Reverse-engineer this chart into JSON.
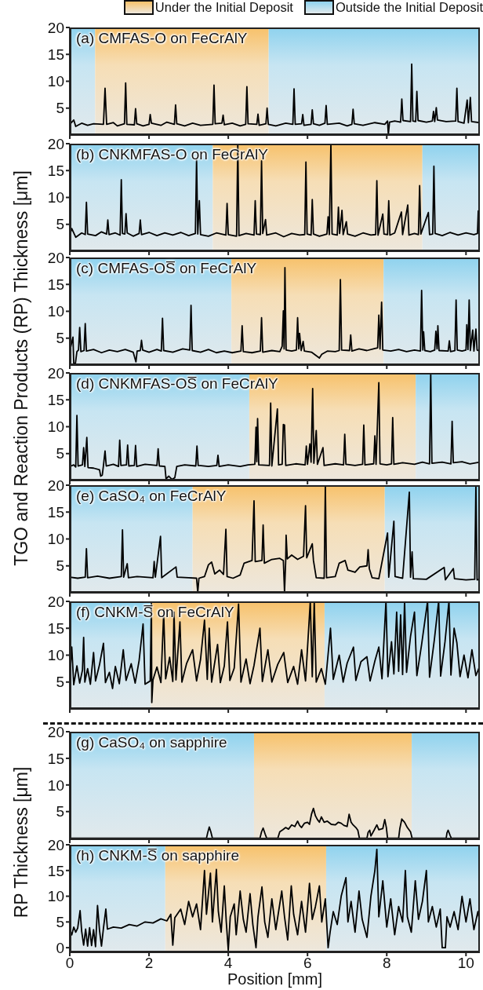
{
  "chart_data": [
    {
      "type": "line",
      "title": "(a) CMFAS-O on FeCrAlY",
      "ylabel": "TGO and Reaction Products (RP) Thickness [μm]",
      "legend": "top",
      "xlim": [
        0,
        10.35
      ],
      "xticks": [
        0,
        2,
        4,
        6,
        8,
        10
      ],
      "ylim": [
        0,
        20
      ],
      "yticks": [
        5,
        10,
        15,
        20
      ],
      "tick_labels": "y",
      "bands": [
        {
          "axis": "x",
          "from": 0,
          "to": 0.64,
          "color": "#8ed2ee"
        },
        {
          "axis": "x",
          "from": 0.64,
          "to": 5.02,
          "label": "Under the Initial Deposit",
          "color": "#f7c16a"
        },
        {
          "axis": "x",
          "from": 5.02,
          "to": 10.35,
          "label": "Outside the Initial Deposit",
          "color": "#8ed2ee"
        }
      ],
      "series": [
        {
          "color": "#000000",
          "x": [
            0,
            0.1,
            0.15,
            0.3,
            0.45,
            0.6,
            0.85,
            0.89,
            0.93,
            1.1,
            1.2,
            1.38,
            1.41,
            1.44,
            1.63,
            1.66,
            1.69,
            1.85,
            2.0,
            2.03,
            2.06,
            2.3,
            2.45,
            2.64,
            2.67,
            2.7,
            2.9,
            3.1,
            3.3,
            3.61,
            3.64,
            3.67,
            3.84,
            3.87,
            3.9,
            4.1,
            4.3,
            4.44,
            4.47,
            4.5,
            4.72,
            4.75,
            4.78,
            4.95,
            4.98,
            5.01,
            5.2,
            5.45,
            5.63,
            5.66,
            5.69,
            5.85,
            5.88,
            5.91,
            6.09,
            6.12,
            6.15,
            6.3,
            6.44,
            6.47,
            6.5,
            6.8,
            7.0,
            7.12,
            7.15,
            7.18,
            7.4,
            7.7,
            7.95,
            8.02,
            8.04,
            8.07,
            8.2,
            8.35,
            8.38,
            8.41,
            8.6,
            8.63,
            8.66,
            8.73,
            8.76,
            8.79,
            9.0,
            9.15,
            9.18,
            9.21,
            9.25,
            9.28,
            9.5,
            9.74,
            9.77,
            9.8,
            9.95,
            10.03,
            10.06,
            10.11,
            10.14,
            10.35
          ],
          "values": [
            2.0,
            2.8,
            1.6,
            2.2,
            1.8,
            2.1,
            2.0,
            8.7,
            2.0,
            2.3,
            1.7,
            2.1,
            9.7,
            2.0,
            1.9,
            4.9,
            2.1,
            1.7,
            2.0,
            3.8,
            2.2,
            1.8,
            2.4,
            2.0,
            5.6,
            2.1,
            1.7,
            2.2,
            1.8,
            2.0,
            9.3,
            2.1,
            2.2,
            3.7,
            1.9,
            2.2,
            1.7,
            2.0,
            9.0,
            2.1,
            2.0,
            3.9,
            1.8,
            2.1,
            5.0,
            2.0,
            1.7,
            2.2,
            2.0,
            8.6,
            2.0,
            2.1,
            3.8,
            1.8,
            2.0,
            4.7,
            2.1,
            1.8,
            2.2,
            5.5,
            2.0,
            2.2,
            1.7,
            2.0,
            4.8,
            2.1,
            1.8,
            2.3,
            2.0,
            2.6,
            0.1,
            2.4,
            2.6,
            2.4,
            6.7,
            2.7,
            2.5,
            13.2,
            2.6,
            2.5,
            8.1,
            2.7,
            2.4,
            2.6,
            4.4,
            2.5,
            5.1,
            2.8,
            2.5,
            2.6,
            8.7,
            2.5,
            2.2,
            6.5,
            2.3,
            7.0,
            2.5,
            2.3
          ]
        }
      ]
    },
    {
      "type": "line",
      "title": "(b) CNKMFAS-O on FeCrAlY",
      "xlim": [
        0,
        10.35
      ],
      "xticks": [
        0,
        2,
        4,
        6,
        8,
        10
      ],
      "ylim": [
        0,
        20
      ],
      "yticks": [
        5,
        10,
        15,
        20
      ],
      "tick_labels": "y",
      "bands": [
        {
          "axis": "x",
          "from": 0,
          "to": 3.61,
          "color": "#8ed2ee"
        },
        {
          "axis": "x",
          "from": 3.61,
          "to": 8.9,
          "color": "#f7c16a"
        },
        {
          "axis": "x",
          "from": 8.9,
          "to": 10.35,
          "color": "#8ed2ee"
        }
      ],
      "series": [
        {
          "color": "#000000",
          "x": [
            0,
            0.05,
            0.15,
            0.3,
            0.39,
            0.42,
            0.45,
            0.65,
            0.8,
            0.93,
            0.96,
            0.99,
            1.15,
            1.27,
            1.3,
            1.33,
            1.39,
            1.42,
            1.45,
            1.6,
            1.75,
            1.78,
            1.81,
            2.0,
            2.2,
            2.4,
            2.6,
            2.8,
            3.0,
            3.17,
            3.2,
            3.23,
            3.27,
            3.3,
            3.5,
            3.7,
            3.94,
            3.97,
            4.0,
            4.21,
            4.24,
            4.27,
            4.45,
            4.65,
            4.68,
            4.71,
            4.81,
            4.84,
            4.87,
            4.94,
            4.97,
            5.2,
            5.4,
            5.6,
            5.8,
            5.93,
            5.96,
            5.99,
            6.09,
            6.12,
            6.15,
            6.3,
            6.49,
            6.52,
            6.55,
            6.59,
            6.62,
            6.75,
            6.78,
            6.81,
            6.87,
            6.9,
            6.98,
            7.01,
            7.2,
            7.4,
            7.6,
            7.72,
            7.75,
            7.78,
            7.9,
            7.93,
            8.02,
            8.05,
            8.08,
            8.2,
            8.37,
            8.4,
            8.53,
            8.56,
            8.7,
            8.8,
            8.83,
            8.86,
            9.05,
            9.08,
            9.16,
            9.19,
            9.22,
            9.4,
            9.6,
            9.8,
            10.0,
            10.2,
            10.29,
            10.31,
            10.35
          ],
          "values": [
            3.0,
            4.2,
            2.6,
            3.4,
            3.1,
            9.1,
            3.2,
            2.9,
            3.6,
            3.2,
            5.8,
            3.1,
            3.4,
            3.0,
            13.3,
            3.3,
            3.2,
            7.0,
            3.4,
            2.8,
            3.3,
            5.8,
            3.1,
            3.5,
            2.9,
            3.4,
            3.0,
            3.5,
            2.9,
            3.3,
            17.1,
            3.2,
            9.4,
            3.1,
            2.8,
            3.4,
            3.0,
            8.9,
            3.1,
            2.8,
            20,
            2.9,
            3.3,
            3.0,
            9.4,
            3.2,
            3.1,
            16.8,
            3.3,
            5.9,
            3.0,
            3.4,
            2.7,
            3.3,
            3.0,
            3.1,
            16.6,
            3.2,
            3.0,
            9.6,
            3.2,
            2.8,
            3.2,
            6.4,
            3.1,
            20,
            3.2,
            3.0,
            8.2,
            3.3,
            7.6,
            3.1,
            5.5,
            3.2,
            2.8,
            3.4,
            3.0,
            3.1,
            13.1,
            3.0,
            6.9,
            3.2,
            3.1,
            9.4,
            3.0,
            3.4,
            7.3,
            3.1,
            8.6,
            3.0,
            3.3,
            3.1,
            12.2,
            3.2,
            7.2,
            3.1,
            3.2,
            15.8,
            3.3,
            2.9,
            3.5,
            3.0,
            3.4,
            3.1,
            3.3,
            7.5,
            3.3
          ]
        }
      ]
    },
    {
      "type": "line",
      "title": "(c) CMFAS-OS̅ on FeCrAlY",
      "xlim": [
        0,
        10.35
      ],
      "xticks": [
        0,
        2,
        4,
        6,
        8,
        10
      ],
      "ylim": [
        0,
        20
      ],
      "yticks": [
        5,
        10,
        15,
        20
      ],
      "tick_labels": "y",
      "bands": [
        {
          "axis": "x",
          "from": 0,
          "to": 4.08,
          "color": "#8ed2ee"
        },
        {
          "axis": "x",
          "from": 4.08,
          "to": 7.92,
          "color": "#f7c16a"
        },
        {
          "axis": "x",
          "from": 7.92,
          "to": 10.35,
          "color": "#8ed2ee"
        }
      ],
      "series": [
        {
          "color": "#000000",
          "x": [
            0,
            0.08,
            0.1,
            0.14,
            0.18,
            0.22,
            0.25,
            0.28,
            0.36,
            0.39,
            0.42,
            0.6,
            0.8,
            1.0,
            1.2,
            1.4,
            1.6,
            1.67,
            1.7,
            1.78,
            1.81,
            1.84,
            2.0,
            2.2,
            2.31,
            2.34,
            2.37,
            2.6,
            2.85,
            3.03,
            3.06,
            3.09,
            3.3,
            3.5,
            3.7,
            3.9,
            4.1,
            4.32,
            4.35,
            4.38,
            4.6,
            4.81,
            4.84,
            4.87,
            5.1,
            5.3,
            5.36,
            5.39,
            5.41,
            5.43,
            5.46,
            5.6,
            5.72,
            5.75,
            5.78,
            5.8,
            5.84,
            5.89,
            5.92,
            6.1,
            6.3,
            6.36,
            6.5,
            6.7,
            6.8,
            6.83,
            6.86,
            7.06,
            7.09,
            7.12,
            7.3,
            7.5,
            7.7,
            7.77,
            7.8,
            7.83,
            7.87,
            7.9,
            8.1,
            8.3,
            8.5,
            8.7,
            8.85,
            8.88,
            8.91,
            8.93,
            8.96,
            9.1,
            9.21,
            9.24,
            9.27,
            9.29,
            9.32,
            9.55,
            9.58,
            9.61,
            9.72,
            9.75,
            9.78,
            9.9,
            10.0,
            10.02,
            10.05,
            10.08,
            10.11,
            10.17,
            10.2,
            10.25,
            10.28,
            10.35
          ],
          "values": [
            2.6,
            5.2,
            0.3,
            0.2,
            2.5,
            2.8,
            7.0,
            2.5,
            2.7,
            7.7,
            2.6,
            2.9,
            2.3,
            2.8,
            2.5,
            2.9,
            2.4,
            0.6,
            2.6,
            2.7,
            4.6,
            2.8,
            2.4,
            2.9,
            2.6,
            8.7,
            2.7,
            2.4,
            3.0,
            2.8,
            11.1,
            2.7,
            2.4,
            2.9,
            2.3,
            2.6,
            2.3,
            2.6,
            7.3,
            2.5,
            2.3,
            2.6,
            8.8,
            2.4,
            2.7,
            2.5,
            3.5,
            10.1,
            3.0,
            18.1,
            2.8,
            2.6,
            2.8,
            8.8,
            3.0,
            5.9,
            2.7,
            4.4,
            2.6,
            2.4,
            1.3,
            2.0,
            2.6,
            2.5,
            2.7,
            15.9,
            2.8,
            2.7,
            5.6,
            2.6,
            3.0,
            2.7,
            3.1,
            3.2,
            9.3,
            3.0,
            11.7,
            2.8,
            2.6,
            2.9,
            2.5,
            2.8,
            2.6,
            13.9,
            2.8,
            6.2,
            2.7,
            2.5,
            2.8,
            6.3,
            3.0,
            7.3,
            2.7,
            2.6,
            4.5,
            2.5,
            2.7,
            12.1,
            2.8,
            2.6,
            2.8,
            7.5,
            2.9,
            12.1,
            2.7,
            6.5,
            2.6,
            6.7,
            2.8,
            2.6
          ]
        }
      ]
    },
    {
      "type": "line",
      "title": "(d) CNKMFAS-OS̅ on FeCrAlY",
      "xlim": [
        0,
        10.35
      ],
      "xticks": [
        0,
        2,
        4,
        6,
        8,
        10
      ],
      "ylim": [
        0,
        20
      ],
      "yticks": [
        5,
        10,
        15,
        20
      ],
      "tick_labels": "y",
      "bands": [
        {
          "axis": "x",
          "from": 0,
          "to": 4.53,
          "color": "#8ed2ee"
        },
        {
          "axis": "x",
          "from": 4.53,
          "to": 8.73,
          "color": "#f7c16a"
        },
        {
          "axis": "x",
          "from": 8.73,
          "to": 10.35,
          "color": "#8ed2ee"
        }
      ],
      "series": [
        {
          "color": "#000000",
          "x": [
            0,
            0.1,
            0.15,
            0.18,
            0.21,
            0.32,
            0.35,
            0.38,
            0.43,
            0.46,
            0.6,
            0.75,
            0.78,
            0.82,
            0.85,
            0.89,
            0.92,
            1.1,
            1.23,
            1.26,
            1.29,
            1.43,
            1.46,
            1.49,
            1.63,
            1.66,
            1.69,
            1.9,
            2.2,
            2.23,
            2.26,
            2.4,
            2.43,
            2.5,
            2.58,
            2.65,
            2.7,
            2.9,
            3.18,
            3.21,
            3.24,
            3.5,
            3.71,
            3.74,
            3.77,
            4.0,
            4.3,
            4.5,
            4.67,
            4.7,
            4.72,
            4.74,
            4.77,
            5.04,
            5.07,
            5.1,
            5.24,
            5.27,
            5.36,
            5.39,
            5.42,
            5.45,
            5.7,
            5.94,
            5.97,
            6.0,
            6.06,
            6.09,
            6.13,
            6.16,
            6.22,
            6.25,
            6.39,
            6.42,
            6.7,
            6.91,
            6.94,
            6.97,
            7.2,
            7.39,
            7.42,
            7.45,
            7.67,
            7.7,
            7.73,
            7.8,
            7.83,
            8.0,
            8.12,
            8.15,
            8.18,
            8.4,
            8.7,
            8.9,
            9.08,
            9.11,
            9.14,
            9.4,
            9.62,
            9.65,
            9.68,
            9.9,
            10.1,
            10.35
          ],
          "values": [
            2.6,
            2.9,
            2.5,
            12.1,
            2.7,
            2.9,
            6.1,
            2.6,
            8.0,
            2.4,
            2.3,
            2.0,
            0.8,
            1.0,
            2.8,
            5.5,
            2.7,
            3.0,
            2.6,
            7.5,
            2.8,
            2.9,
            6.6,
            2.7,
            2.8,
            6.5,
            2.6,
            3.0,
            2.8,
            5.9,
            2.7,
            2.6,
            0.3,
            0.8,
            0.2,
            0.5,
            2.6,
            2.9,
            2.7,
            6.4,
            2.8,
            2.6,
            2.8,
            4.7,
            2.6,
            2.9,
            2.6,
            2.9,
            3.0,
            9.9,
            3.5,
            11.5,
            2.9,
            2.8,
            14.4,
            2.7,
            13.3,
            2.9,
            3.0,
            10.4,
            10.3,
            2.8,
            3.1,
            2.9,
            6.4,
            3.0,
            6.8,
            3.4,
            17.1,
            3.2,
            9.3,
            3.0,
            6.1,
            2.8,
            3.1,
            2.9,
            8.6,
            3.0,
            2.8,
            3.0,
            10.3,
            2.9,
            3.1,
            8.3,
            3.0,
            18.2,
            3.1,
            2.9,
            3.1,
            11.7,
            3.0,
            3.3,
            3.0,
            3.4,
            3.1,
            20,
            3.2,
            3.4,
            3.1,
            11.0,
            3.3,
            3.5,
            3.1,
            3.4
          ]
        }
      ]
    },
    {
      "type": "line",
      "title": "(e) CaSO₄ on FeCrAlY",
      "xlim": [
        0,
        10.35
      ],
      "xticks": [
        0,
        2,
        4,
        6,
        8,
        10
      ],
      "ylim": [
        0,
        20
      ],
      "yticks": [
        5,
        10,
        15,
        20
      ],
      "tick_labels": "y",
      "bands": [
        {
          "axis": "x",
          "from": 0,
          "to": 3.1,
          "color": "#8ed2ee"
        },
        {
          "axis": "x",
          "from": 3.1,
          "to": 7.95,
          "color": "#f7c16a"
        },
        {
          "axis": "x",
          "from": 7.95,
          "to": 10.35,
          "color": "#8ed2ee"
        }
      ],
      "series": [
        {
          "color": "#000000",
          "x": [
            0,
            0.2,
            0.39,
            0.42,
            0.45,
            0.7,
            1.0,
            1.3,
            1.33,
            1.36,
            1.45,
            1.48,
            1.7,
            2.1,
            2.13,
            2.16,
            2.29,
            2.32,
            2.68,
            2.71,
            3.0,
            3.2,
            3.23,
            3.26,
            3.4,
            3.5,
            3.58,
            3.66,
            3.78,
            3.88,
            3.94,
            3.97,
            4.12,
            4.3,
            4.4,
            4.6,
            4.65,
            4.68,
            4.85,
            4.88,
            4.91,
            5.1,
            5.3,
            5.39,
            5.42,
            5.45,
            5.46,
            5.49,
            5.6,
            5.75,
            5.9,
            5.95,
            5.98,
            6.12,
            6.15,
            6.22,
            6.42,
            6.45,
            6.48,
            6.7,
            6.8,
            6.95,
            7.02,
            7.2,
            7.32,
            7.5,
            7.53,
            7.56,
            7.63,
            7.8,
            8.02,
            8.05,
            8.18,
            8.21,
            8.4,
            8.57,
            8.6,
            8.64,
            8.67,
            9.0,
            9.45,
            9.48,
            9.68,
            9.71,
            10.0,
            10.22,
            10.25,
            10.28,
            10.35
          ],
          "values": [
            2.9,
            2.7,
            2.9,
            8.2,
            2.8,
            3.1,
            2.7,
            3.0,
            11.7,
            2.9,
            5.4,
            2.8,
            3.0,
            2.8,
            5.8,
            2.9,
            10.5,
            2.8,
            4.8,
            2.9,
            2.8,
            2.7,
            0.1,
            2.7,
            3.0,
            5.2,
            5.7,
            3.5,
            4.2,
            3.4,
            11.8,
            3.0,
            2.7,
            3.3,
            5.5,
            6.0,
            17.1,
            5.8,
            6.0,
            12.6,
            5.5,
            6.2,
            6.4,
            6.0,
            0.1,
            6.1,
            10.7,
            6.3,
            7.0,
            6.2,
            6.8,
            16.2,
            6.5,
            9.1,
            6.0,
            2.8,
            2.7,
            20,
            2.8,
            3.0,
            5.5,
            6.0,
            4.2,
            3.8,
            4.8,
            5.0,
            8.0,
            4.5,
            2.8,
            2.6,
            11.1,
            2.9,
            13.3,
            3.0,
            2.7,
            18.7,
            2.9,
            7.6,
            2.6,
            2.5,
            4.7,
            2.4,
            4.5,
            2.6,
            2.4,
            2.5,
            20,
            2.4,
            2.5
          ]
        }
      ]
    },
    {
      "type": "line",
      "title": "(f) CNKM-S̅ on FeCrAlY",
      "xlim": [
        0,
        10.35
      ],
      "xticks": [
        0,
        2,
        4,
        6,
        8,
        10
      ],
      "ylim": [
        0,
        20
      ],
      "yticks": [
        5,
        10,
        15,
        20
      ],
      "tick_labels": "y",
      "bands": [
        {
          "axis": "x",
          "from": 0,
          "to": 2.04,
          "color": "#8ed2ee"
        },
        {
          "axis": "x",
          "from": 2.04,
          "to": 6.43,
          "color": "#f7c16a"
        },
        {
          "axis": "x",
          "from": 6.43,
          "to": 10.35,
          "color": "#8ed2ee"
        }
      ],
      "series": [
        {
          "color": "#000000",
          "x": [
            0,
            0.05,
            0.1,
            0.18,
            0.25,
            0.32,
            0.35,
            0.38,
            0.45,
            0.52,
            0.6,
            0.65,
            0.75,
            0.85,
            0.9,
            1.0,
            1.08,
            1.15,
            1.25,
            1.35,
            1.42,
            1.55,
            1.65,
            1.75,
            1.85,
            1.9,
            2.03,
            2.06,
            2.07,
            2.1,
            2.2,
            2.3,
            2.37,
            2.42,
            2.52,
            2.6,
            2.63,
            2.68,
            2.78,
            2.83,
            2.95,
            3.1,
            3.2,
            3.3,
            3.4,
            3.47,
            3.52,
            3.58,
            3.73,
            3.8,
            3.9,
            3.98,
            4.04,
            4.15,
            4.26,
            4.32,
            4.45,
            4.55,
            4.65,
            4.8,
            4.86,
            5.0,
            5.1,
            5.25,
            5.4,
            5.5,
            5.65,
            5.75,
            5.85,
            5.95,
            6.07,
            6.12,
            6.17,
            6.22,
            6.35,
            6.45,
            6.58,
            6.65,
            6.8,
            6.9,
            7.0,
            7.16,
            7.22,
            7.35,
            7.5,
            7.58,
            7.7,
            7.8,
            7.88,
            7.98,
            8.03,
            8.12,
            8.18,
            8.25,
            8.3,
            8.35,
            8.4,
            8.45,
            8.5,
            8.6,
            8.7,
            8.76,
            8.88,
            9.03,
            9.08,
            9.2,
            9.31,
            9.36,
            9.47,
            9.57,
            9.62,
            9.7,
            9.77,
            9.85,
            9.95,
            10.05,
            10.15,
            10.25,
            10.35
          ],
          "values": [
            6.0,
            11.5,
            4.5,
            8.0,
            4.8,
            7.2,
            13.3,
            5.0,
            7.5,
            4.6,
            10.5,
            5.2,
            8.2,
            12.2,
            4.9,
            6.8,
            3.8,
            7.9,
            4.7,
            11.0,
            5.3,
            8.4,
            4.8,
            9.0,
            15.8,
            4.6,
            5.2,
            20,
            1.2,
            5.4,
            7.8,
            4.9,
            17.8,
            5.6,
            9.6,
            5.1,
            18.0,
            5.4,
            16.2,
            5.0,
            8.5,
            11.0,
            5.2,
            9.2,
            16.5,
            5.5,
            15.0,
            5.0,
            12.0,
            4.9,
            8.0,
            16.2,
            5.3,
            7.6,
            19.5,
            5.0,
            9.3,
            4.7,
            8.1,
            15.0,
            5.1,
            11.0,
            5.0,
            8.3,
            10.5,
            4.9,
            7.9,
            4.6,
            11.0,
            5.2,
            20,
            6.0,
            20,
            5.0,
            7.5,
            4.6,
            15.0,
            5.5,
            10.0,
            5.0,
            8.5,
            11.5,
            5.3,
            8.8,
            9.7,
            5.2,
            8.9,
            11.5,
            5.6,
            20,
            6.0,
            12.5,
            6.5,
            18.0,
            7.0,
            17.5,
            6.4,
            20,
            6.8,
            13.5,
            18.0,
            6.2,
            12.0,
            20,
            5.9,
            12.8,
            20,
            6.1,
            12.5,
            20,
            6.3,
            15.0,
            12.3,
            6.0,
            10.0,
            5.8,
            11.0,
            6.2,
            8.0
          ]
        }
      ]
    },
    {
      "type": "line",
      "title": "(g) CaSO₄ on sapphire",
      "ylabel": "RP Thickness [μm]",
      "xlim": [
        0,
        10.35
      ],
      "xticks": [
        0,
        2,
        4,
        6,
        8,
        10
      ],
      "ylim": [
        -0.2,
        20
      ],
      "yticks": [
        5,
        10,
        15,
        20
      ],
      "tick_labels": "y",
      "bands": [
        {
          "axis": "x",
          "from": 0,
          "to": 4.65,
          "color": "#8ed2ee"
        },
        {
          "axis": "x",
          "from": 4.65,
          "to": 8.63,
          "color": "#f7c16a"
        },
        {
          "axis": "x",
          "from": 8.63,
          "to": 10.35,
          "color": "#8ed2ee"
        }
      ],
      "series": [
        {
          "color": "#000000",
          "x": [
            0,
            3.45,
            3.48,
            3.52,
            3.56,
            3.6,
            4.8,
            4.84,
            4.88,
            4.93,
            4.97,
            5.25,
            5.3,
            5.38,
            5.45,
            5.52,
            5.6,
            5.68,
            5.75,
            5.8,
            5.85,
            5.92,
            6.0,
            6.05,
            6.1,
            6.15,
            6.2,
            6.25,
            6.3,
            6.35,
            6.42,
            6.5,
            6.6,
            6.7,
            6.78,
            6.85,
            6.92,
            7.0,
            7.05,
            7.1,
            7.15,
            7.22,
            7.27,
            7.31,
            7.5,
            7.53,
            7.57,
            7.6,
            7.68,
            7.75,
            7.8,
            7.9,
            7.95,
            7.99,
            8.02,
            8.3,
            8.33,
            8.38,
            8.45,
            8.52,
            8.6,
            8.64,
            9.5,
            9.52,
            9.55,
            9.6,
            9.63,
            10.35
          ],
          "values": [
            0,
            0,
            1.0,
            2.1,
            1.2,
            0,
            0,
            1.2,
            1.9,
            0.8,
            0,
            0,
            1.2,
            1.6,
            2.0,
            1.7,
            2.5,
            2.2,
            3.2,
            2.4,
            2.0,
            2.8,
            3.0,
            2.6,
            4.5,
            5.6,
            4.2,
            3.5,
            3.0,
            4.0,
            3.0,
            3.2,
            2.6,
            2.5,
            3.0,
            2.8,
            2.4,
            2.2,
            4.5,
            3.0,
            2.5,
            2.0,
            1.5,
            0,
            0,
            1.1,
            1.5,
            0.4,
            1.5,
            2.5,
            1.6,
            1.8,
            3.5,
            2.0,
            0,
            0,
            1.8,
            3.6,
            3.0,
            2.0,
            1.2,
            0,
            0,
            1.0,
            1.5,
            0.5,
            0,
            0
          ]
        }
      ]
    },
    {
      "type": "line",
      "title": "(h) CNKM-S̅ on sapphire",
      "xlabel": "Position [mm]",
      "xlim": [
        0,
        10.35
      ],
      "xticks": [
        0,
        2,
        4,
        6,
        8,
        10
      ],
      "ylim": [
        -0.9,
        20
      ],
      "yticks": [
        0,
        5,
        10,
        15,
        20
      ],
      "bands": [
        {
          "axis": "x",
          "from": 0,
          "to": 2.41,
          "color": "#8ed2ee"
        },
        {
          "axis": "x",
          "from": 2.41,
          "to": 6.47,
          "color": "#f7c16a"
        },
        {
          "axis": "x",
          "from": 6.47,
          "to": 10.35,
          "color": "#8ed2ee"
        }
      ],
      "series": [
        {
          "color": "#000000",
          "x": [
            0,
            0.05,
            0.1,
            0.15,
            0.2,
            0.26,
            0.3,
            0.35,
            0.4,
            0.45,
            0.5,
            0.55,
            0.6,
            0.65,
            0.7,
            0.75,
            0.8,
            0.85,
            0.91,
            0.95,
            1.1,
            1.3,
            1.5,
            1.7,
            1.9,
            2.1,
            2.3,
            2.45,
            2.55,
            2.6,
            2.65,
            2.8,
            2.9,
            3.0,
            3.1,
            3.2,
            3.3,
            3.4,
            3.45,
            3.55,
            3.6,
            3.7,
            3.75,
            3.82,
            3.9,
            3.95,
            4.0,
            4.05,
            4.15,
            4.2,
            4.3,
            4.38,
            4.45,
            4.55,
            4.62,
            4.7,
            4.75,
            4.85,
            4.92,
            5.0,
            5.1,
            5.2,
            5.35,
            5.42,
            5.5,
            5.59,
            5.65,
            5.75,
            5.85,
            5.95,
            6.05,
            6.12,
            6.2,
            6.3,
            6.36,
            6.45,
            6.52,
            6.57,
            6.65,
            6.75,
            6.85,
            6.97,
            7.02,
            7.1,
            7.2,
            7.3,
            7.38,
            7.5,
            7.6,
            7.7,
            7.75,
            7.8,
            7.9,
            8.0,
            8.1,
            8.2,
            8.3,
            8.4,
            8.47,
            8.52,
            8.62,
            8.72,
            8.8,
            8.9,
            9.0,
            9.05,
            9.15,
            9.25,
            9.35,
            9.4,
            9.48,
            9.52,
            9.6,
            9.7,
            9.8,
            9.9,
            10.0,
            10.1,
            10.2,
            10.3,
            10.35
          ],
          "values": [
            3.5,
            2.5,
            4.0,
            3.0,
            3.8,
            7.2,
            3.2,
            0.5,
            3.6,
            0.3,
            3.9,
            0.4,
            3.5,
            0.2,
            8.2,
            3.4,
            0.3,
            3.8,
            7.5,
            3.6,
            4.0,
            3.8,
            4.5,
            4.2,
            5.0,
            4.8,
            5.6,
            5.2,
            6.5,
            0.5,
            5.8,
            7.5,
            4.5,
            9.0,
            6.0,
            8.5,
            3.5,
            15.0,
            6.5,
            14.5,
            5.0,
            15.2,
            7.0,
            3.0,
            12.0,
            5.0,
            -0.5,
            6.0,
            8.5,
            2.5,
            11.0,
            5.5,
            3.0,
            10.5,
            4.5,
            0,
            6.0,
            11.8,
            5.0,
            2.0,
            9.5,
            3.5,
            11.0,
            6.0,
            1.5,
            12.0,
            6.5,
            2.5,
            9.0,
            3.0,
            12.5,
            5.5,
            8.0,
            12.0,
            5.0,
            9.5,
            0,
            3.0,
            7.0,
            4.5,
            10.0,
            13.6,
            5.0,
            9.0,
            3.0,
            11.0,
            5.5,
            2.0,
            10.0,
            15.0,
            19.1,
            6.0,
            13.0,
            4.0,
            9.5,
            2.5,
            8.0,
            5.0,
            15.0,
            6.0,
            3.0,
            13.0,
            5.5,
            9.0,
            15.0,
            5.0,
            8.0,
            4.0,
            7.5,
            0,
            0,
            6.0,
            4.0,
            7.0,
            3.5,
            10.0,
            5.0,
            9.5,
            3.5,
            7.0,
            5.0
          ]
        }
      ]
    }
  ]
}
